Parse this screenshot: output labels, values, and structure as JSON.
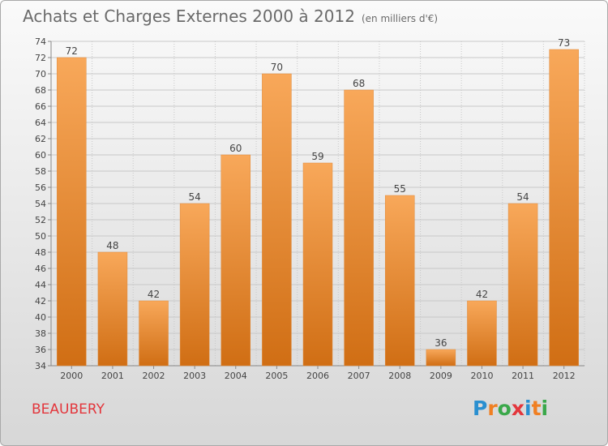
{
  "header": {
    "title": "Achats et Charges Externes 2000 à 2012",
    "unit": "(en milliers d'€)"
  },
  "commune": "BEAUBERY",
  "logo": {
    "text": "Proxiti",
    "letters": [
      "P",
      "r",
      "o",
      "x",
      "i",
      "t",
      "i"
    ],
    "colors": [
      "#2a8fd0",
      "#f07f22",
      "#3aa84a",
      "#e3363c",
      "#2a8fd0",
      "#f07f22",
      "#3aa84a"
    ]
  },
  "colors": {
    "bar_top": "#f8a85a",
    "bar_bottom": "#d06e14",
    "grid": "#c8c8c8",
    "axis_text": "#444444"
  },
  "chart_data": {
    "type": "bar",
    "title": "Achats et Charges Externes 2000 à 2012",
    "subtitle": "(en milliers d'€)",
    "categories": [
      "2000",
      "2001",
      "2002",
      "2003",
      "2004",
      "2005",
      "2006",
      "2007",
      "2008",
      "2009",
      "2010",
      "2011",
      "2012"
    ],
    "values": [
      72,
      48,
      42,
      54,
      60,
      70,
      59,
      68,
      55,
      36,
      42,
      54,
      73
    ],
    "ylim": [
      34,
      74
    ],
    "yticks": [
      34,
      36,
      38,
      40,
      42,
      44,
      46,
      48,
      50,
      52,
      54,
      56,
      58,
      60,
      62,
      64,
      66,
      68,
      70,
      72,
      74
    ],
    "grid": true,
    "xlabel": "",
    "ylabel": ""
  }
}
